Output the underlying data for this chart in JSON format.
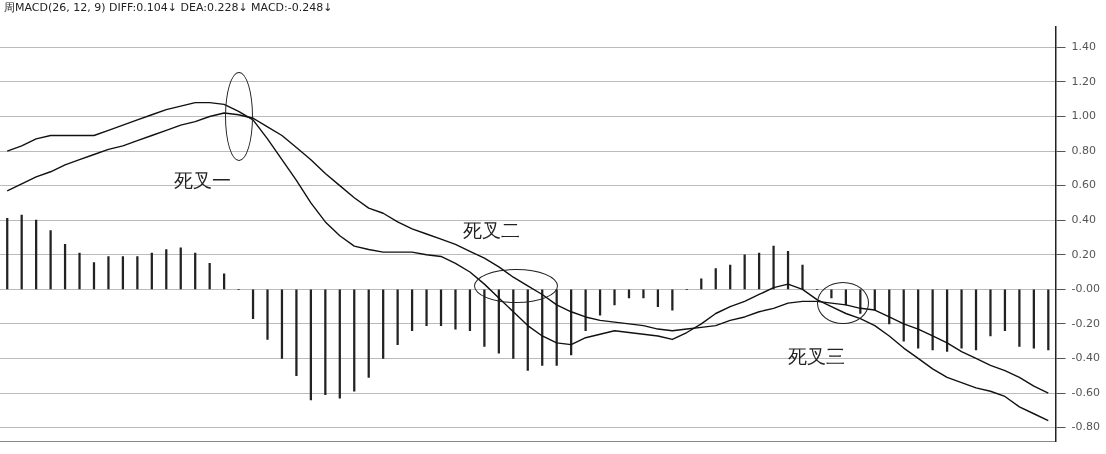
{
  "chart_data": {
    "type": "bar",
    "title": "周MACD(26, 12, 9)  DIFF:0.104↓ DEA:0.228↓ MACD:-0.248↓",
    "categories": [
      null,
      null,
      null,
      null,
      null,
      null,
      null,
      null,
      null,
      null,
      null,
      null,
      null,
      null,
      null,
      null,
      null,
      null,
      null,
      null,
      null,
      null,
      null,
      null,
      null,
      null,
      null,
      null,
      null,
      null,
      null,
      null,
      null,
      null,
      null,
      null,
      null,
      null,
      null,
      null,
      null,
      null,
      null,
      null,
      null,
      null,
      null,
      null,
      null,
      null,
      null,
      null,
      null,
      null,
      null,
      null,
      null,
      null,
      null,
      null,
      null,
      null,
      null,
      null,
      null,
      null,
      null,
      null,
      null,
      null,
      null,
      null,
      null
    ],
    "series": [
      {
        "color": "#222222",
        "values": [
          0.41,
          0.43,
          0.4,
          0.34,
          0.26,
          0.21,
          0.155,
          0.19,
          0.19,
          0.19,
          0.21,
          0.23,
          0.24,
          0.21,
          0.15,
          0.09,
          0.0,
          -0.17,
          -0.29,
          -0.4,
          -0.5,
          -0.64,
          -0.61,
          -0.63,
          -0.59,
          -0.51,
          -0.4,
          -0.32,
          -0.24,
          -0.21,
          -0.21,
          -0.23,
          -0.24,
          -0.33,
          -0.37,
          -0.4,
          -0.47,
          -0.44,
          -0.44,
          -0.38,
          -0.24,
          -0.15,
          -0.09,
          -0.05,
          -0.05,
          -0.1,
          -0.12,
          0.0,
          0.06,
          0.12,
          0.14,
          0.2,
          0.21,
          0.25,
          0.22,
          0.14,
          0.0,
          -0.05,
          -0.09,
          -0.14,
          -0.12,
          -0.2,
          -0.3,
          -0.34,
          -0.35,
          -0.36,
          -0.34,
          -0.35,
          -0.27,
          -0.24,
          -0.33,
          -0.34,
          -0.35
        ]
      },
      {
        "type": "line",
        "color": "#111111",
        "values": [
          0.8,
          0.83,
          0.87,
          0.89,
          0.89,
          0.89,
          0.89,
          0.92,
          0.95,
          0.98,
          1.01,
          1.04,
          1.06,
          1.08,
          1.08,
          1.07,
          1.03,
          0.98,
          0.87,
          0.75,
          0.63,
          0.5,
          0.39,
          0.31,
          0.25,
          0.23,
          0.215,
          0.215,
          0.215,
          0.2,
          0.19,
          0.15,
          0.1,
          0.03,
          -0.05,
          -0.13,
          -0.21,
          -0.27,
          -0.31,
          -0.32,
          -0.28,
          -0.26,
          -0.24,
          -0.25,
          -0.26,
          -0.27,
          -0.29,
          -0.25,
          -0.2,
          -0.14,
          -0.1,
          -0.07,
          -0.03,
          0.01,
          0.03,
          0.0,
          -0.06,
          -0.1,
          -0.14,
          -0.17,
          -0.21,
          -0.27,
          -0.34,
          -0.4,
          -0.46,
          -0.51,
          -0.54,
          -0.57,
          -0.59,
          -0.62,
          -0.68,
          -0.72,
          -0.76
        ]
      },
      {
        "type": "line",
        "color": "#111111",
        "values": [
          0.57,
          0.61,
          0.65,
          0.68,
          0.72,
          0.75,
          0.78,
          0.81,
          0.83,
          0.86,
          0.89,
          0.92,
          0.95,
          0.97,
          1.0,
          1.02,
          1.01,
          0.99,
          0.94,
          0.89,
          0.82,
          0.75,
          0.67,
          0.6,
          0.53,
          0.47,
          0.44,
          0.39,
          0.35,
          0.32,
          0.29,
          0.26,
          0.22,
          0.18,
          0.13,
          0.07,
          0.02,
          -0.03,
          -0.09,
          -0.13,
          -0.16,
          -0.18,
          -0.19,
          -0.2,
          -0.21,
          -0.23,
          -0.24,
          -0.23,
          -0.22,
          -0.21,
          -0.18,
          -0.16,
          -0.13,
          -0.11,
          -0.08,
          -0.07,
          -0.07,
          -0.08,
          -0.09,
          -0.11,
          -0.12,
          -0.16,
          -0.2,
          -0.23,
          -0.27,
          -0.31,
          -0.36,
          -0.4,
          -0.44,
          -0.47,
          -0.51,
          -0.56,
          -0.6
        ]
      }
    ],
    "ylim": [
      -0.88,
      1.52
    ],
    "yticks": [
      {
        "value": 1.4,
        "label": "1.40"
      },
      {
        "value": 1.2,
        "label": "1.20"
      },
      {
        "value": 1.0,
        "label": "1.00"
      },
      {
        "value": 0.8,
        "label": "0.80"
      },
      {
        "value": 0.6,
        "label": "0.60"
      },
      {
        "value": 0.4,
        "label": "0.40"
      },
      {
        "value": 0.2,
        "label": "0.20"
      },
      {
        "value": 0,
        "label": "-0.00"
      },
      {
        "value": -0.2,
        "label": "-0.20"
      },
      {
        "value": -0.4,
        "label": "-0.40"
      },
      {
        "value": -0.6,
        "label": "-0.60"
      },
      {
        "value": -0.8,
        "label": "-0.80"
      }
    ],
    "grid": "y",
    "tick_labels": "y",
    "marker": "none",
    "line_style": "solid",
    "legend": false,
    "annotations": [
      "死叉一",
      "死叉二",
      "死叉三"
    ]
  }
}
